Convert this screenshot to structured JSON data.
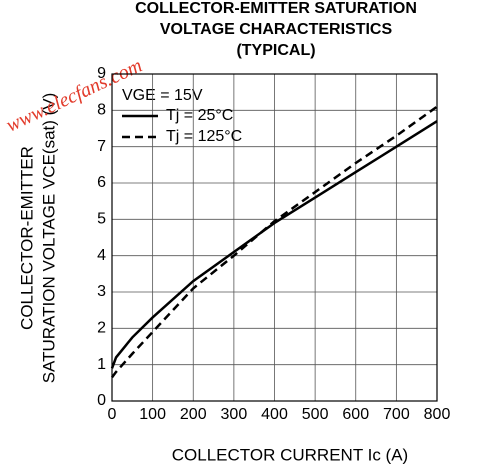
{
  "chart_data": {
    "type": "line",
    "title": [
      "COLLECTOR-EMITTER SATURATION",
      "VOLTAGE CHARACTERISTICS",
      "(TYPICAL)"
    ],
    "x_label": "COLLECTOR CURRENT Ic (A)",
    "y_label": [
      "COLLECTOR-EMITTER",
      "SATURATION VOLTAGE VCE(sat) (V)"
    ],
    "annotation": "VGE = 15V",
    "watermark": "www.elecfans.com",
    "x": [
      0,
      10,
      50,
      100,
      200,
      300,
      400,
      500,
      600,
      700,
      800
    ],
    "series": [
      {
        "name": "Tj = 25°C",
        "color": "#000000",
        "dash": "solid",
        "values": [
          0.9,
          1.2,
          1.75,
          2.3,
          3.3,
          4.1,
          4.9,
          5.6,
          6.3,
          7.0,
          7.7
        ]
      },
      {
        "name": "Tj = 125°C",
        "color": "#000000",
        "dash": "dashed",
        "values": [
          0.65,
          0.8,
          1.3,
          1.9,
          3.1,
          4.0,
          4.95,
          5.75,
          6.55,
          7.3,
          8.1
        ]
      }
    ],
    "xlim": [
      0,
      800
    ],
    "xticks": [
      0,
      100,
      200,
      300,
      400,
      500,
      600,
      700,
      800
    ],
    "ylim": [
      0,
      9
    ],
    "yticks": [
      0,
      1,
      2,
      3,
      4,
      5,
      6,
      7,
      8,
      9
    ],
    "grid": true
  }
}
